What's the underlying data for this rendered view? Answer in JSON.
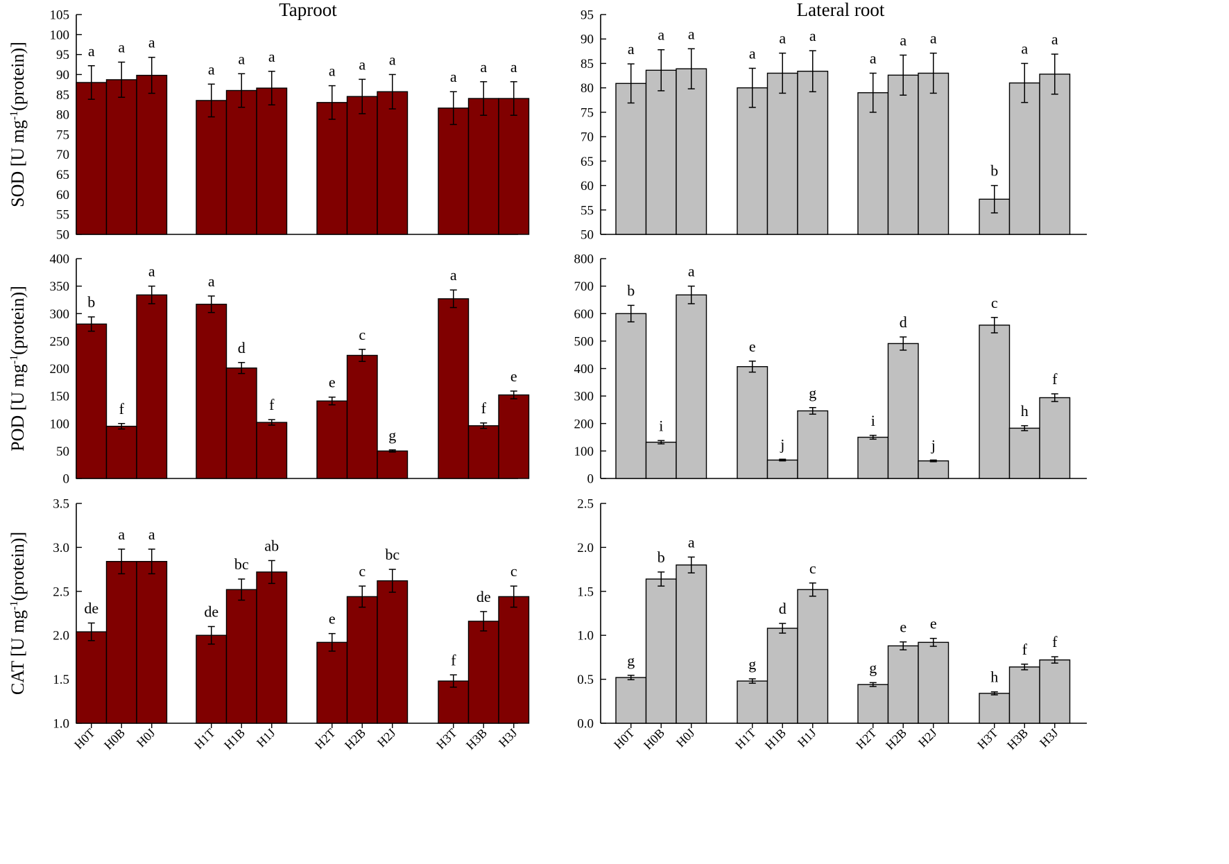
{
  "chart_data": [
    {
      "type": "bar",
      "column": "taproot",
      "row": "sod",
      "title": "Taproot",
      "ylabel": "SOD [U mg-1(protein)]",
      "ylim": [
        50,
        105
      ],
      "ystep": 5,
      "ydecimals": 0,
      "bar_color": "#800000",
      "categories": [
        "H0T",
        "H0B",
        "H0J",
        "H1T",
        "H1B",
        "H1J",
        "H2T",
        "H2B",
        "H2J",
        "H3T",
        "H3B",
        "H3J"
      ],
      "values": [
        88.0,
        88.7,
        89.8,
        83.5,
        86.0,
        86.6,
        83.0,
        84.5,
        85.7,
        81.6,
        84.0,
        84.0
      ],
      "errors": [
        4.2,
        4.4,
        4.5,
        4.1,
        4.2,
        4.2,
        4.2,
        4.3,
        4.3,
        4.1,
        4.2,
        4.2
      ],
      "labels": [
        "a",
        "a",
        "a",
        "a",
        "a",
        "a",
        "a",
        "a",
        "a",
        "a",
        "a",
        "a"
      ]
    },
    {
      "type": "bar",
      "column": "lateral",
      "row": "sod",
      "title": "Lateral root",
      "ylabel": "",
      "ylim": [
        50,
        95
      ],
      "ystep": 5,
      "ydecimals": 0,
      "bar_color": "#c0c0c0",
      "categories": [
        "H0T",
        "H0B",
        "H0J",
        "H1T",
        "H1B",
        "H1J",
        "H2T",
        "H2B",
        "H2J",
        "H3T",
        "H3B",
        "H3J"
      ],
      "values": [
        80.9,
        83.6,
        83.9,
        80.0,
        83.0,
        83.4,
        79.0,
        82.6,
        83.0,
        57.2,
        81.0,
        82.8
      ],
      "errors": [
        4.0,
        4.2,
        4.1,
        4.0,
        4.1,
        4.2,
        4.0,
        4.1,
        4.1,
        2.8,
        4.0,
        4.1
      ],
      "labels": [
        "a",
        "a",
        "a",
        "a",
        "a",
        "a",
        "a",
        "a",
        "a",
        "b",
        "a",
        "a"
      ]
    },
    {
      "type": "bar",
      "column": "taproot",
      "row": "pod",
      "title": "",
      "ylabel": "POD [U mg-1(protein)]",
      "ylim": [
        0,
        400
      ],
      "ystep": 50,
      "ydecimals": 0,
      "bar_color": "#800000",
      "categories": [
        "H0T",
        "H0B",
        "H0J",
        "H1T",
        "H1B",
        "H1J",
        "H2T",
        "H2B",
        "H2J",
        "H3T",
        "H3B",
        "H3J"
      ],
      "values": [
        281,
        95,
        334,
        317,
        201,
        102,
        141,
        224,
        50,
        327,
        96,
        152
      ],
      "errors": [
        13,
        5,
        16,
        15,
        10,
        5,
        7,
        11,
        2,
        16,
        5,
        7
      ],
      "labels": [
        "b",
        "f",
        "a",
        "a",
        "d",
        "f",
        "e",
        "c",
        "g",
        "a",
        "f",
        "e"
      ]
    },
    {
      "type": "bar",
      "column": "lateral",
      "row": "pod",
      "title": "",
      "ylabel": "",
      "ylim": [
        0,
        800
      ],
      "ystep": 100,
      "ydecimals": 0,
      "bar_color": "#c0c0c0",
      "categories": [
        "H0T",
        "H0B",
        "H0J",
        "H1T",
        "H1B",
        "H1J",
        "H2T",
        "H2B",
        "H2J",
        "H3T",
        "H3B",
        "H3J"
      ],
      "values": [
        600,
        132,
        668,
        407,
        67,
        246,
        150,
        491,
        64,
        558,
        183,
        294
      ],
      "errors": [
        30,
        6,
        32,
        20,
        3,
        12,
        7,
        24,
        3,
        28,
        9,
        14
      ],
      "labels": [
        "b",
        "i",
        "a",
        "e",
        "j",
        "g",
        "i",
        "d",
        "j",
        "c",
        "h",
        "f"
      ]
    },
    {
      "type": "bar",
      "column": "taproot",
      "row": "cat",
      "title": "",
      "ylabel": "CAT [U mg-1(protein)]",
      "ylim": [
        1.0,
        3.5
      ],
      "ystep": 0.5,
      "ydecimals": 1,
      "bar_color": "#800000",
      "categories": [
        "H0T",
        "H0B",
        "H0J",
        "H1T",
        "H1B",
        "H1J",
        "H2T",
        "H2B",
        "H2J",
        "H3T",
        "H3B",
        "H3J"
      ],
      "values": [
        2.04,
        2.84,
        2.84,
        2.0,
        2.52,
        2.72,
        1.92,
        2.44,
        2.62,
        1.48,
        2.16,
        2.44
      ],
      "errors": [
        0.1,
        0.14,
        0.14,
        0.1,
        0.12,
        0.13,
        0.1,
        0.12,
        0.13,
        0.07,
        0.11,
        0.12
      ],
      "labels": [
        "de",
        "a",
        "a",
        "de",
        "bc",
        "ab",
        "e",
        "c",
        "bc",
        "f",
        "de",
        "c"
      ]
    },
    {
      "type": "bar",
      "column": "lateral",
      "row": "cat",
      "title": "",
      "ylabel": "",
      "ylim": [
        0.0,
        2.5
      ],
      "ystep": 0.5,
      "ydecimals": 1,
      "bar_color": "#c0c0c0",
      "categories": [
        "H0T",
        "H0B",
        "H0J",
        "H1T",
        "H1B",
        "H1J",
        "H2T",
        "H2B",
        "H2J",
        "H3T",
        "H3B",
        "H3J"
      ],
      "values": [
        0.52,
        1.64,
        1.8,
        0.48,
        1.08,
        1.52,
        0.44,
        0.88,
        0.92,
        0.34,
        0.64,
        0.72
      ],
      "errors": [
        0.025,
        0.08,
        0.09,
        0.025,
        0.055,
        0.075,
        0.022,
        0.045,
        0.045,
        0.017,
        0.032,
        0.036
      ],
      "labels": [
        "g",
        "b",
        "a",
        "g",
        "d",
        "c",
        "g",
        "e",
        "e",
        "h",
        "f",
        "f"
      ]
    }
  ]
}
